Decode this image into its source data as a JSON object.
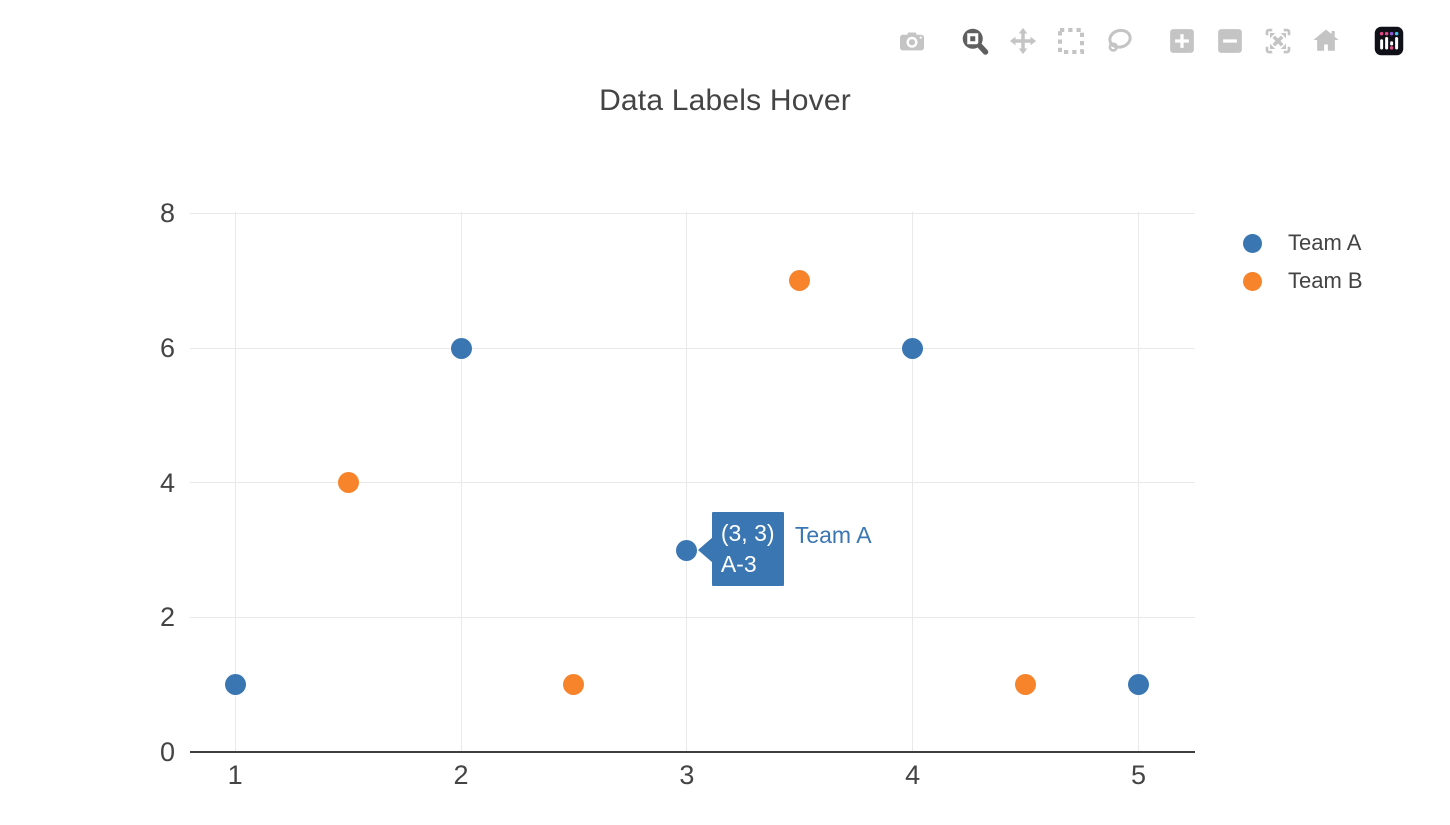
{
  "title": "Data Labels Hover",
  "modebar": {
    "icons": [
      {
        "name": "camera-icon",
        "group": 1,
        "active": false
      },
      {
        "name": "zoom-icon",
        "group": 2,
        "active": true
      },
      {
        "name": "pan-icon",
        "group": 2,
        "active": false
      },
      {
        "name": "box-select-icon",
        "group": 2,
        "active": false
      },
      {
        "name": "lasso-select-icon",
        "group": 2,
        "active": false
      },
      {
        "name": "zoom-in-icon",
        "group": 3,
        "active": false
      },
      {
        "name": "zoom-out-icon",
        "group": 3,
        "active": false
      },
      {
        "name": "autoscale-icon",
        "group": 3,
        "active": false
      },
      {
        "name": "reset-axes-icon",
        "group": 3,
        "active": false
      },
      {
        "name": "plotly-logo-icon",
        "group": 4,
        "active": false
      }
    ]
  },
  "colors": {
    "text": "#444444",
    "grid": "#e9e9e9",
    "axis_line": "#3f3f3f",
    "modebar_inactive": "#c4c4c4",
    "modebar_active": "#5f5f5f",
    "background": "#ffffff"
  },
  "chart_data": {
    "type": "scatter",
    "title": "Data Labels Hover",
    "xlim": [
      0.8,
      5.25
    ],
    "ylim": [
      0,
      8.02
    ],
    "xticks": [
      1,
      2,
      3,
      4,
      5
    ],
    "yticks": [
      0,
      2,
      4,
      6,
      8
    ],
    "grid": true,
    "legend_position": "right",
    "series": [
      {
        "name": "Team A",
        "color": "#3a76b2",
        "marker": "circle",
        "points": [
          [
            1,
            1
          ],
          [
            2,
            6
          ],
          [
            3,
            3
          ],
          [
            4,
            6
          ],
          [
            5,
            1
          ]
        ]
      },
      {
        "name": "Team B",
        "color": "#f7832b",
        "marker": "circle",
        "points": [
          [
            1.5,
            4
          ],
          [
            2.5,
            1
          ],
          [
            3.5,
            7
          ],
          [
            4.5,
            1
          ]
        ]
      }
    ],
    "hover": {
      "series": "Team A",
      "series_index": 0,
      "x": 3,
      "y": 3,
      "line1": "(3, 3)",
      "line2": "A-3"
    }
  }
}
